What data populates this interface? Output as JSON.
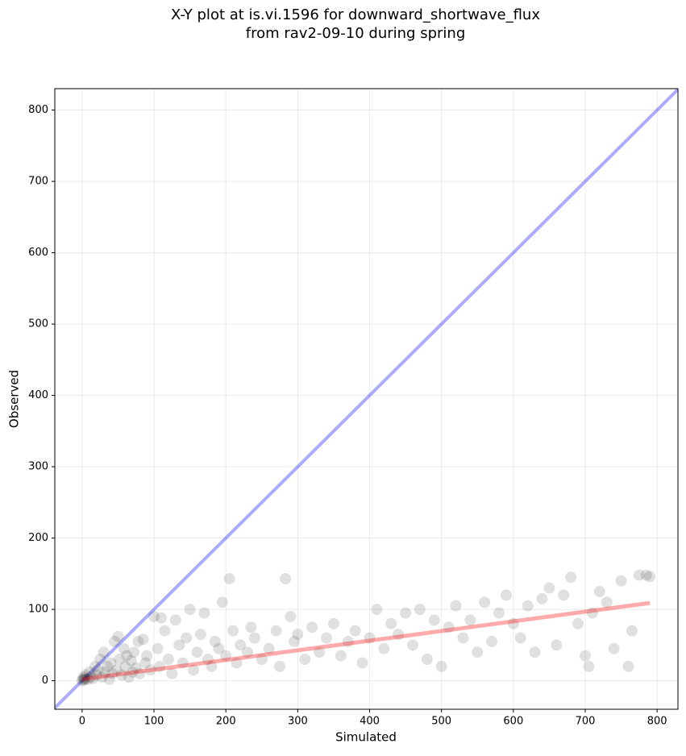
{
  "chart_data": {
    "type": "scatter",
    "title": [
      "X-Y plot at is.vi.1596 for downward_shortwave_flux",
      "from rav2-09-10 during spring"
    ],
    "x_label": "Simulated",
    "y_label": "Observed",
    "xlim": [
      -38,
      829
    ],
    "ylim": [
      -40,
      830
    ],
    "xticks": [
      0,
      100,
      200,
      300,
      400,
      500,
      600,
      700,
      800
    ],
    "yticks": [
      0,
      100,
      200,
      300,
      400,
      500,
      600,
      700,
      800
    ],
    "grid": true,
    "color": "#000000",
    "identity_line_color": "#0000ff",
    "fit_color": "#ff0000",
    "x": [
      0,
      1,
      2,
      3,
      5,
      4,
      8,
      10,
      12,
      15,
      18,
      20,
      22,
      25,
      28,
      30,
      32,
      35,
      38,
      40,
      42,
      45,
      48,
      50,
      52,
      55,
      58,
      60,
      62,
      65,
      68,
      70,
      72,
      75,
      78,
      80,
      85,
      88,
      90,
      95,
      100,
      105,
      108,
      110,
      115,
      120,
      125,
      130,
      135,
      140,
      145,
      150,
      155,
      160,
      165,
      170,
      175,
      180,
      185,
      190,
      195,
      200,
      205,
      210,
      215,
      220,
      230,
      235,
      240,
      250,
      260,
      270,
      275,
      283,
      290,
      295,
      300,
      310,
      320,
      330,
      340,
      350,
      360,
      370,
      380,
      390,
      400,
      410,
      420,
      430,
      440,
      450,
      460,
      470,
      480,
      490,
      500,
      510,
      520,
      530,
      540,
      550,
      560,
      570,
      580,
      590,
      600,
      610,
      620,
      630,
      640,
      650,
      660,
      670,
      680,
      690,
      700,
      705,
      710,
      720,
      730,
      740,
      750,
      760,
      765,
      775,
      785,
      790
    ],
    "y": [
      0,
      2,
      5,
      1,
      8,
      3,
      2,
      12,
      5,
      3,
      20,
      8,
      15,
      30,
      5,
      40,
      12,
      20,
      2,
      25,
      10,
      55,
      15,
      62,
      30,
      8,
      45,
      20,
      35,
      5,
      28,
      12,
      40,
      18,
      55,
      10,
      58,
      25,
      35,
      15,
      90,
      45,
      20,
      88,
      70,
      30,
      10,
      85,
      50,
      25,
      60,
      100,
      15,
      40,
      65,
      95,
      30,
      20,
      55,
      45,
      110,
      35,
      143,
      70,
      25,
      50,
      40,
      75,
      60,
      30,
      45,
      70,
      20,
      143,
      90,
      55,
      65,
      30,
      75,
      40,
      60,
      80,
      35,
      55,
      70,
      25,
      60,
      100,
      45,
      80,
      65,
      95,
      50,
      100,
      30,
      85,
      20,
      75,
      105,
      60,
      85,
      40,
      110,
      55,
      95,
      120,
      80,
      60,
      105,
      40,
      115,
      130,
      50,
      120,
      145,
      80,
      35,
      20,
      95,
      125,
      110,
      45,
      140,
      20,
      70,
      148,
      148,
      146
    ],
    "fit_x": [
      0,
      790
    ],
    "fit_y": [
      2,
      109
    ]
  }
}
